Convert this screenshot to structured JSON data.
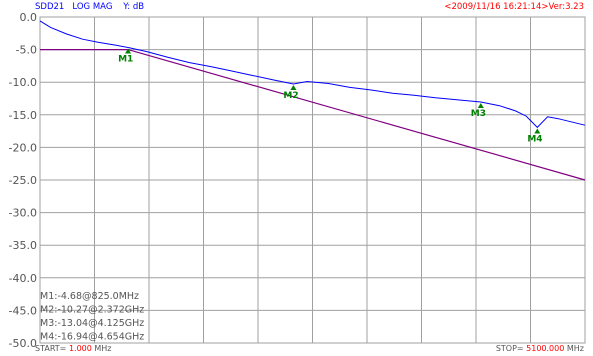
{
  "header": {
    "trace": "SDD21",
    "format": "LOG MAG",
    "yunit": "Y: dB",
    "stamp": "<2009/11/16 16:21:14>Ver:3.23"
  },
  "footer": {
    "start_prefix": "START=",
    "start_value": "1.000",
    "start_unit": "MHz",
    "stop_prefix": "STOP=",
    "stop_value": "5100.000",
    "stop_unit": "MHz"
  },
  "colors": {
    "trace": "#0000ff",
    "limit": "#800080",
    "grid": "#a0a0a0",
    "marker": "#008000",
    "highlight": "#ff0000"
  },
  "chart_data": {
    "type": "line",
    "ylim": [
      -50,
      0
    ],
    "yticks": [
      "0.0",
      "-5.0",
      "-10.0",
      "-15.0",
      "-20.0",
      "-25.0",
      "-30.0",
      "-35.0",
      "-40.0",
      "-45.0",
      "-50.0"
    ],
    "xlim": [
      1,
      5100
    ],
    "xunit": "MHz",
    "grid": true,
    "x_divisions": 10,
    "series": [
      {
        "role": "measured",
        "x": [
          1,
          100,
          250,
          400,
          550,
          700,
          825,
          1000,
          1200,
          1400,
          1600,
          1800,
          2000,
          2200,
          2372,
          2500,
          2700,
          2900,
          3100,
          3300,
          3500,
          3700,
          3900,
          4125,
          4300,
          4450,
          4550,
          4654,
          4750,
          4850,
          4950,
          5100
        ],
        "y": [
          -0.6,
          -1.6,
          -2.6,
          -3.4,
          -3.9,
          -4.3,
          -4.68,
          -5.3,
          -6.2,
          -7.0,
          -7.6,
          -8.3,
          -9.0,
          -9.7,
          -10.27,
          -9.9,
          -10.2,
          -10.8,
          -11.2,
          -11.7,
          -12.0,
          -12.4,
          -12.7,
          -13.04,
          -13.6,
          -14.4,
          -15.2,
          -16.94,
          -15.3,
          -15.6,
          -16.0,
          -16.6
        ]
      },
      {
        "role": "limit",
        "x": [
          1,
          825,
          5100
        ],
        "y": [
          -5.0,
          -5.0,
          -25.0
        ]
      }
    ],
    "markers": [
      {
        "label": "M1",
        "x": 825,
        "y": -4.68
      },
      {
        "label": "M2",
        "x": 2372,
        "y": -10.27
      },
      {
        "label": "M3",
        "x": 4125,
        "y": -13.04
      },
      {
        "label": "M4",
        "x": 4654,
        "y": -16.94
      }
    ],
    "readouts": [
      "M1:-4.68@825.0MHz",
      "M2:-10.27@2.372GHz",
      "M3:-13.04@4.125GHz",
      "M4:-16.94@4.654GHz"
    ]
  }
}
